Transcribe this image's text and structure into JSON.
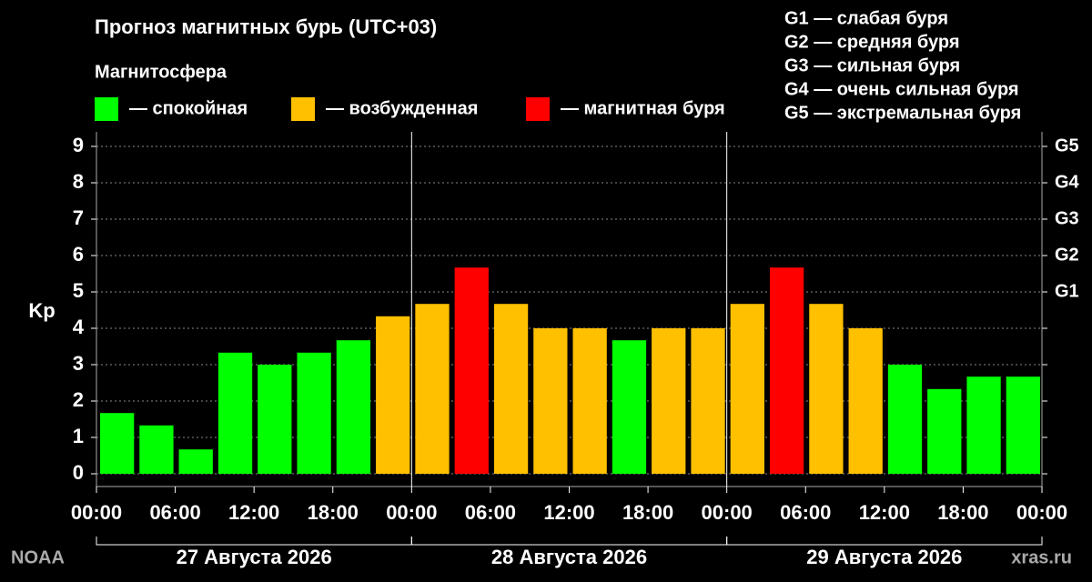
{
  "chart_data": {
    "type": "bar",
    "title": "Прогноз магнитных бурь (UTC+03)",
    "legend_title": "Магнитосфера",
    "legend": [
      {
        "label": "— спокойная",
        "color": "#00ff00"
      },
      {
        "label": "— возбужденная",
        "color": "#ffc000"
      },
      {
        "label": "— магнитная буря",
        "color": "#ff0000"
      }
    ],
    "g_scale": [
      "G1 — слабая буря",
      "G2 — средняя буря",
      "G3 — сильная буря",
      "G4 — очень сильная буря",
      "G5 — экстремальная буря"
    ],
    "y_label": "Kp",
    "x": [
      0,
      3,
      6,
      9,
      12,
      15,
      18,
      21,
      24,
      27,
      30,
      33,
      36,
      39,
      42,
      45,
      48,
      51,
      54,
      57,
      60,
      63,
      66,
      69
    ],
    "values": [
      1.67,
      1.33,
      0.67,
      3.33,
      3.0,
      3.33,
      3.67,
      4.33,
      4.67,
      5.67,
      4.67,
      4.0,
      4.0,
      3.67,
      4.0,
      4.0,
      4.67,
      5.67,
      4.67,
      4.0,
      3.0,
      2.33,
      2.67,
      2.67
    ],
    "colors": [
      "#00ff00",
      "#00ff00",
      "#00ff00",
      "#00ff00",
      "#00ff00",
      "#00ff00",
      "#00ff00",
      "#ffc000",
      "#ffc000",
      "#ff0000",
      "#ffc000",
      "#ffc000",
      "#ffc000",
      "#00ff00",
      "#ffc000",
      "#ffc000",
      "#ffc000",
      "#ff0000",
      "#ffc000",
      "#ffc000",
      "#00ff00",
      "#00ff00",
      "#00ff00",
      "#00ff00"
    ],
    "xlim": [
      0,
      72
    ],
    "xticks": [
      {
        "value": 0,
        "label": "00:00"
      },
      {
        "value": 6,
        "label": "06:00"
      },
      {
        "value": 12,
        "label": "12:00"
      },
      {
        "value": 18,
        "label": "18:00"
      },
      {
        "value": 24,
        "label": "00:00"
      },
      {
        "value": 30,
        "label": "06:00"
      },
      {
        "value": 36,
        "label": "12:00"
      },
      {
        "value": 42,
        "label": "18:00"
      },
      {
        "value": 48,
        "label": "00:00"
      },
      {
        "value": 54,
        "label": "06:00"
      },
      {
        "value": 60,
        "label": "12:00"
      },
      {
        "value": 66,
        "label": "18:00"
      },
      {
        "value": 72,
        "label": "00:00"
      }
    ],
    "ylim": [
      -0.35,
      9.4
    ],
    "yticks": [
      0,
      1,
      2,
      3,
      4,
      5,
      6,
      7,
      8,
      9
    ],
    "y2ticks": [
      {
        "value": 5,
        "label": "G1"
      },
      {
        "value": 6,
        "label": "G2"
      },
      {
        "value": 7,
        "label": "G3"
      },
      {
        "value": 8,
        "label": "G4"
      },
      {
        "value": 9,
        "label": "G5"
      }
    ],
    "grid": true,
    "days": [
      {
        "label": "27 Августа 2026",
        "range": [
          0,
          24
        ]
      },
      {
        "label": "28 Августа 2026",
        "range": [
          24,
          48
        ]
      },
      {
        "label": "29 Августа 2026",
        "range": [
          48,
          72
        ]
      }
    ],
    "source_left": "NOAA",
    "source_right": "xras.ru"
  }
}
